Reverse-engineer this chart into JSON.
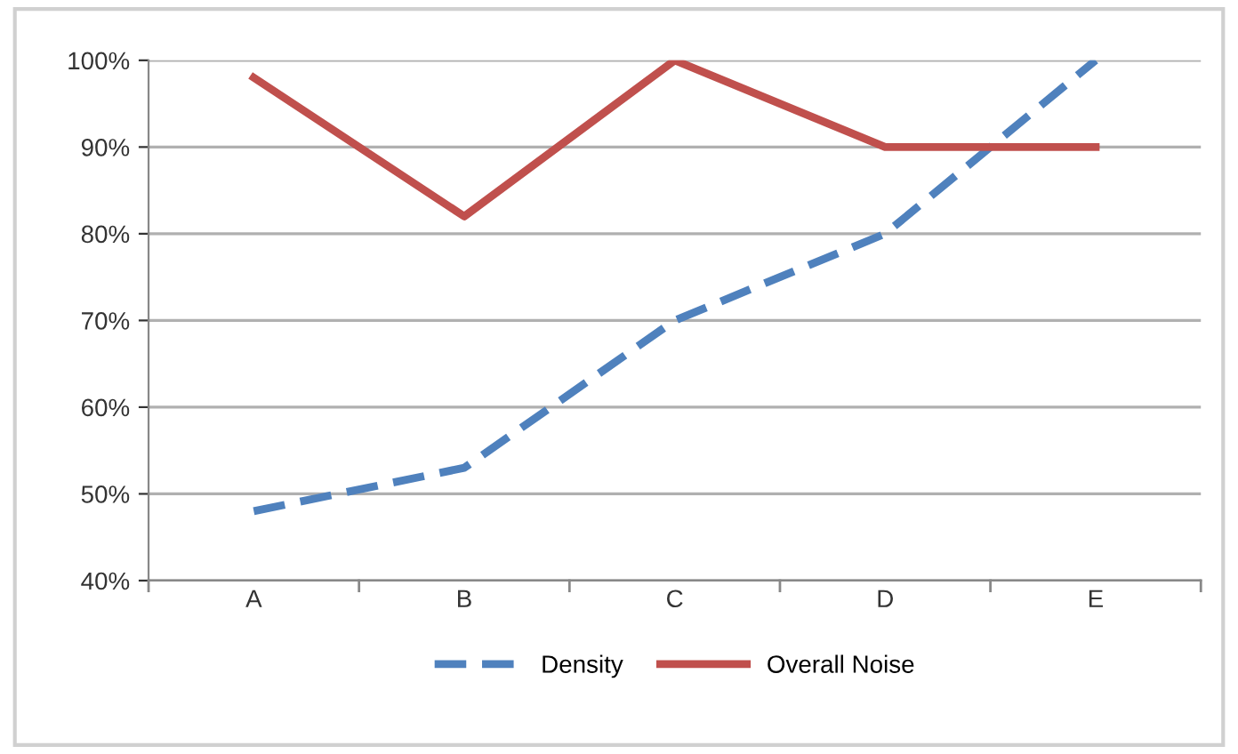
{
  "chart_data": {
    "type": "line",
    "categories": [
      "A",
      "B",
      "C",
      "D",
      "E"
    ],
    "series": [
      {
        "name": "Density",
        "color": "#4f81bd",
        "values": [
          48,
          53,
          70,
          80,
          100
        ],
        "line_style": "dashed"
      },
      {
        "name": "Overall Noise",
        "color": "#c0504d",
        "values": [
          98,
          82,
          100,
          90,
          90
        ],
        "line_style": "solid"
      }
    ],
    "ylim": [
      40,
      100
    ],
    "yticks": [
      {
        "value": 40,
        "label": "40%"
      },
      {
        "value": 50,
        "label": "50%"
      },
      {
        "value": 60,
        "label": "60%"
      },
      {
        "value": 70,
        "label": "70%"
      },
      {
        "value": 80,
        "label": "80%"
      },
      {
        "value": 90,
        "label": "90%"
      },
      {
        "value": 100,
        "label": "100%"
      }
    ],
    "grid": "y",
    "legend": "bottom",
    "marker": "none"
  }
}
